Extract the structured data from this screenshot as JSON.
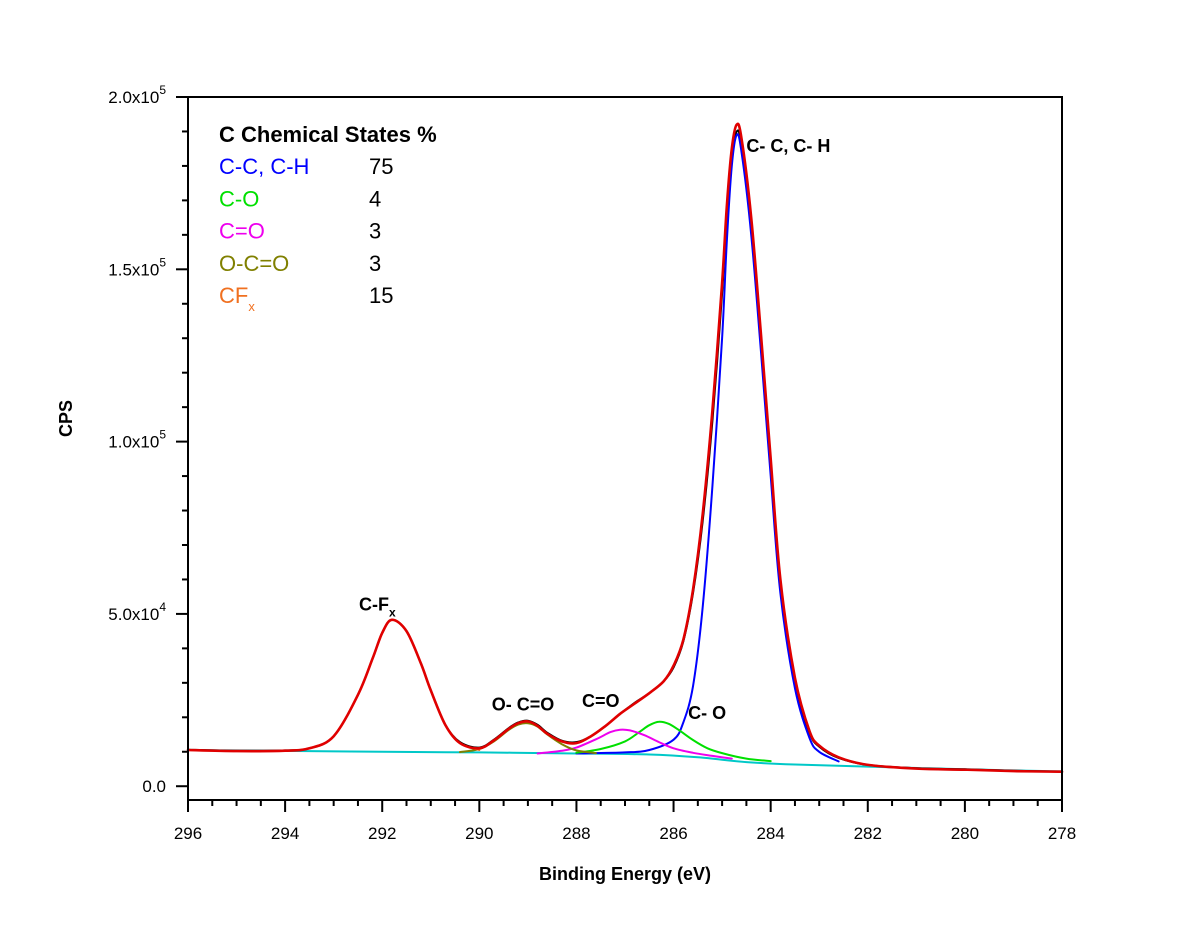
{
  "chart_data": {
    "type": "line",
    "xlabel": "Binding Energy (eV)",
    "ylabel": "CPS",
    "xlim": [
      296,
      278
    ],
    "ylim": [
      -4000,
      200000
    ],
    "x_ticks": [
      296,
      294,
      292,
      290,
      288,
      286,
      284,
      282,
      280,
      278
    ],
    "x_tick_labels": [
      "296",
      "294",
      "292",
      "290",
      "288",
      "286",
      "284",
      "282",
      "280",
      "278"
    ],
    "y_ticks": [
      0,
      50000,
      100000,
      150000,
      200000
    ],
    "y_tick_labels": [
      {
        "base": "0.0",
        "exp": ""
      },
      {
        "base": "5.0x10",
        "exp": "4"
      },
      {
        "base": "1.0x10",
        "exp": "5"
      },
      {
        "base": "1.5x10",
        "exp": "5"
      },
      {
        "base": "2.0x10",
        "exp": "5"
      }
    ],
    "legend": {
      "title": "C Chemical States %",
      "entries": [
        {
          "label": "C-C, C-H",
          "sub": "",
          "value": "75",
          "color": "#0000ff"
        },
        {
          "label": "C-O",
          "sub": "",
          "value": "4",
          "color": "#00e000"
        },
        {
          "label": "C=O",
          "sub": "",
          "value": "3",
          "color": "#ee00ee"
        },
        {
          "label": "O-C=O",
          "sub": "",
          "value": "3",
          "color": "#808000"
        },
        {
          "label": "CF",
          "sub": "x",
          "value": "15",
          "color": "#f07020"
        }
      ]
    },
    "peak_labels": [
      {
        "text": "C- C, C- H",
        "sub": "",
        "x": 284.5,
        "y": 184000
      },
      {
        "text": "C-F",
        "sub": "x",
        "x": 292.1,
        "y": 51000
      },
      {
        "text": "O- C=O",
        "sub": "",
        "x": 289.1,
        "y": 22000
      },
      {
        "text": "C=O",
        "sub": "",
        "x": 287.5,
        "y": 23000
      },
      {
        "text": "C- O",
        "sub": "",
        "x": 285.7,
        "y": 19500
      }
    ],
    "series": [
      {
        "name": "Background",
        "color": "#00c8c8",
        "x": [
          296,
          293.5,
          292,
          290,
          288,
          286.5,
          285.5,
          284.5,
          283.5,
          282,
          280,
          278
        ],
        "y": [
          10500,
          10200,
          10000,
          9800,
          9500,
          9200,
          8400,
          7000,
          6300,
          5700,
          4900,
          4300
        ]
      },
      {
        "name": "Envelope (raw)",
        "color": "#000000",
        "x": [
          296,
          295,
          294,
          293.5,
          293,
          292.5,
          292.2,
          292,
          291.8,
          291.5,
          291.2,
          291,
          290.7,
          290.4,
          290,
          289.7,
          289.4,
          289.2,
          289,
          288.8,
          288.6,
          288.3,
          288,
          287.7,
          287.4,
          287.1,
          286.8,
          286.5,
          286.2,
          286,
          285.8,
          285.6,
          285.4,
          285.2,
          285,
          284.9,
          284.8,
          284.7,
          284.6,
          284.4,
          284.2,
          284,
          283.8,
          283.5,
          283.2,
          283,
          282.6,
          282,
          281,
          280,
          279,
          278
        ],
        "y": [
          10600,
          10300,
          10400,
          11000,
          14500,
          26500,
          37000,
          44500,
          48300,
          45000,
          35500,
          27800,
          17800,
          12800,
          11200,
          13500,
          16800,
          18500,
          19000,
          17800,
          15500,
          13200,
          12800,
          14500,
          17500,
          21000,
          24200,
          27000,
          30500,
          34500,
          42000,
          56000,
          77000,
          106000,
          143000,
          166000,
          182000,
          190000,
          186000,
          162000,
          128000,
          92000,
          58000,
          30000,
          15500,
          11500,
          8200,
          6200,
          5200,
          4900,
          4500,
          4200
        ]
      },
      {
        "name": "C-C, C-H",
        "color": "#0000ff",
        "x": [
          288,
          287,
          286.5,
          286,
          285.8,
          285.6,
          285.4,
          285.2,
          285,
          284.9,
          284.8,
          284.7,
          284.6,
          284.4,
          284.2,
          284,
          283.8,
          283.5,
          283.2,
          283,
          282.6
        ],
        "y": [
          9500,
          9800,
          10500,
          13500,
          18500,
          29000,
          52000,
          87000,
          130000,
          159000,
          180000,
          189000,
          184000,
          160000,
          126000,
          90000,
          56000,
          28500,
          14000,
          10000,
          7200
        ]
      },
      {
        "name": "C-O",
        "color": "#00e000",
        "x": [
          288,
          287.5,
          287,
          286.7,
          286.5,
          286.3,
          286.1,
          285.9,
          285.6,
          285.3,
          285,
          284.5,
          284
        ],
        "y": [
          9700,
          10800,
          13000,
          15800,
          17700,
          18700,
          18100,
          16400,
          13400,
          11000,
          9600,
          8000,
          7300
        ]
      },
      {
        "name": "C=O",
        "color": "#ee00ee",
        "x": [
          288.8,
          288.3,
          288,
          287.6,
          287.3,
          287.1,
          286.9,
          286.6,
          286.3,
          286,
          285.6,
          285.2,
          284.8
        ],
        "y": [
          9500,
          10300,
          11200,
          13600,
          15700,
          16400,
          16200,
          14800,
          12800,
          11000,
          9700,
          8800,
          8000
        ]
      },
      {
        "name": "O-C=O",
        "color": "#808000",
        "x": [
          290.4,
          290,
          289.7,
          289.4,
          289.2,
          289,
          288.8,
          288.6,
          288.3,
          288,
          287.6
        ],
        "y": [
          9900,
          10800,
          13000,
          16300,
          17900,
          18300,
          17300,
          15000,
          12200,
          10400,
          9600
        ]
      },
      {
        "name": "CF",
        "color": "#f07020",
        "x": [
          294,
          293.5,
          293,
          292.5,
          292.2,
          292,
          291.8,
          291.5,
          291.2,
          291,
          290.7,
          290.4,
          290
        ],
        "y": [
          10300,
          11000,
          14500,
          26500,
          37000,
          44500,
          48300,
          45000,
          35500,
          27800,
          17800,
          12500,
          10500
        ]
      },
      {
        "name": "Envelope (fit)",
        "color": "#e00000",
        "x": [
          296,
          295,
          294,
          293.5,
          293,
          292.5,
          292.2,
          292,
          291.8,
          291.5,
          291.2,
          291,
          290.7,
          290.4,
          290,
          289.7,
          289.4,
          289.2,
          289,
          288.8,
          288.6,
          288.3,
          288,
          287.7,
          287.4,
          287.1,
          286.8,
          286.5,
          286.2,
          286,
          285.8,
          285.6,
          285.4,
          285.2,
          285,
          284.9,
          284.8,
          284.7,
          284.6,
          284.4,
          284.2,
          284,
          283.8,
          283.5,
          283.2,
          283,
          282.6,
          282,
          281,
          280,
          279,
          278
        ],
        "y": [
          10500,
          10200,
          10300,
          11000,
          14500,
          26500,
          37000,
          44500,
          48300,
          45000,
          35500,
          27800,
          17800,
          12500,
          11000,
          13300,
          16600,
          18300,
          18800,
          17500,
          15200,
          13000,
          12500,
          14500,
          17500,
          21000,
          24000,
          27000,
          30500,
          35000,
          42500,
          57000,
          79000,
          109000,
          146000,
          169000,
          185000,
          192000,
          188000,
          165000,
          131000,
          95000,
          60000,
          31500,
          16000,
          11800,
          8400,
          6200,
          5100,
          4800,
          4400,
          4200
        ]
      }
    ]
  }
}
